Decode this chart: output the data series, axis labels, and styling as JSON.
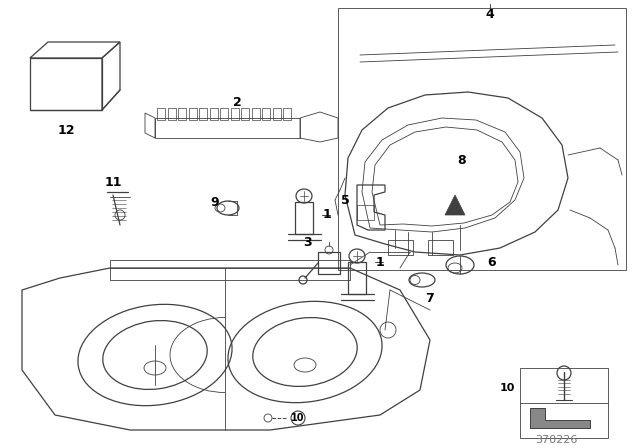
{
  "bg_color": "#ffffff",
  "line_color": "#404040",
  "label_color": "#000000",
  "part_number_text": "370226",
  "fig_width": 6.4,
  "fig_height": 4.48,
  "dpi": 100
}
